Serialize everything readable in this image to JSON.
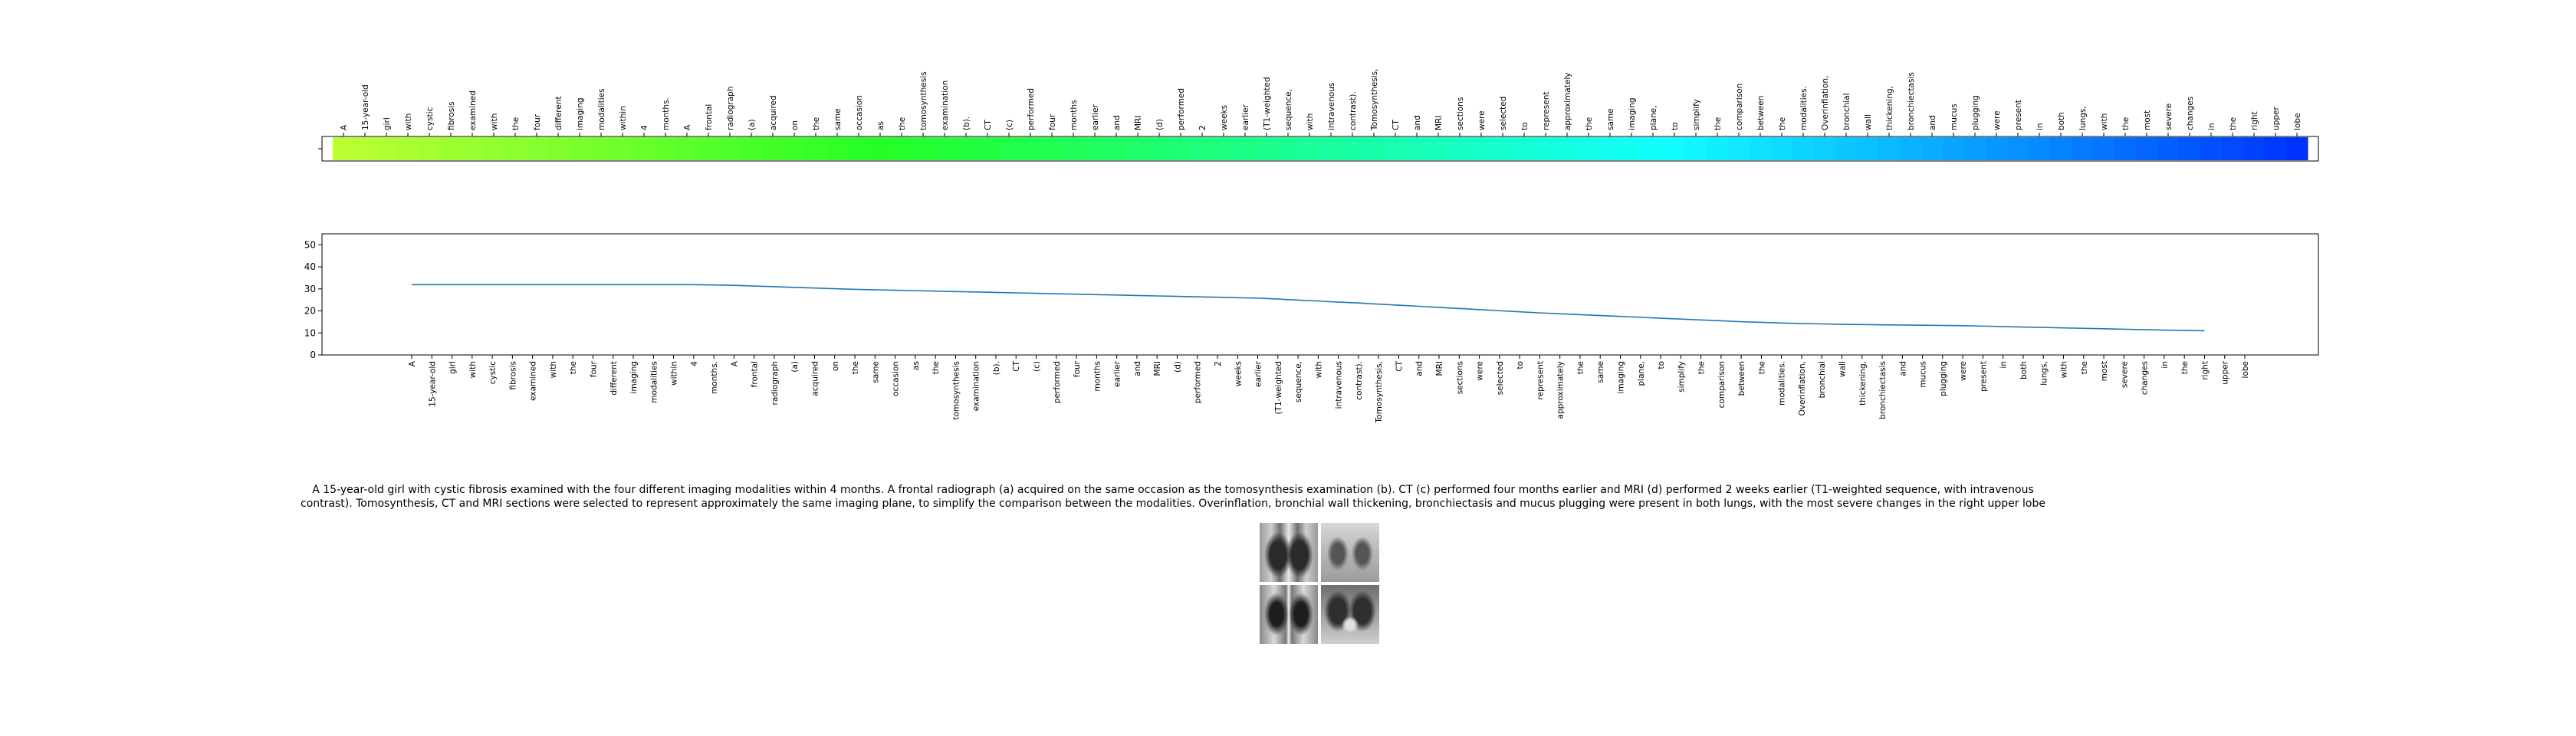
{
  "chart_data": [
    {
      "type": "heatmap",
      "orientation": "horizontal-strip",
      "colormap": "gist_rainbow",
      "x_tick_labels": [
        "A",
        "15-year-old",
        "girl",
        "with",
        "cystic",
        "fibrosis",
        "examined",
        "with",
        "the",
        "four",
        "different",
        "imaging",
        "modalities",
        "within",
        "4",
        "months.",
        "A",
        "frontal",
        "radiograph",
        "(a)",
        "acquired",
        "on",
        "the",
        "same",
        "occasion",
        "as",
        "the",
        "tomosynthesis",
        "examination",
        "(b).",
        "CT",
        "(c)",
        "performed",
        "four",
        "months",
        "earlier",
        "and",
        "MRI",
        "(d)",
        "performed",
        "2",
        "weeks",
        "earlier",
        "(T1-weighted",
        "sequence,",
        "with",
        "intravenous",
        "contrast).",
        "Tomosynthesis,",
        "CT",
        "and",
        "MRI",
        "sections",
        "were",
        "selected",
        "to",
        "represent",
        "approximately",
        "the",
        "same",
        "imaging",
        "plane,",
        "to",
        "simplify",
        "the",
        "comparison",
        "between",
        "the",
        "modalities.",
        "Overinflation,",
        "bronchial",
        "wall",
        "thickening,",
        "bronchiectasis",
        "and",
        "mucus",
        "plugging",
        "were",
        "present",
        "in",
        "both",
        "lungs,",
        "with",
        "the",
        "most",
        "severe",
        "changes",
        "in",
        "the",
        "right",
        "upper",
        "lobe"
      ],
      "tick_label_position": "top",
      "color_start": "#bbff33",
      "color_end": "#0033ff"
    },
    {
      "type": "line",
      "x_tick_labels": [
        "A",
        "15-year-old",
        "girl",
        "with",
        "cystic",
        "fibrosis",
        "examined",
        "with",
        "the",
        "four",
        "different",
        "imaging",
        "modalities",
        "within",
        "4",
        "months.",
        "A",
        "frontal",
        "radiograph",
        "(a)",
        "acquired",
        "on",
        "the",
        "same",
        "occasion",
        "as",
        "the",
        "tomosynthesis",
        "examination",
        "(b).",
        "CT",
        "(c)",
        "performed",
        "four",
        "months",
        "earlier",
        "and",
        "MRI",
        "(d)",
        "performed",
        "2",
        "weeks",
        "earlier",
        "(T1-weighted",
        "sequence,",
        "with",
        "intravenous",
        "contrast).",
        "Tomosynthesis,",
        "CT",
        "and",
        "MRI",
        "sections",
        "were",
        "selected",
        "to",
        "represent",
        "approximately",
        "the",
        "same",
        "imaging",
        "plane,",
        "to",
        "simplify",
        "the",
        "comparison",
        "between",
        "the",
        "modalities.",
        "Overinflation,",
        "bronchial",
        "wall",
        "thickening,",
        "bronchiectasis",
        "and",
        "mucus",
        "plugging",
        "were",
        "present",
        "in",
        "both",
        "lungs,",
        "with",
        "the",
        "most",
        "severe",
        "changes",
        "in",
        "the",
        "right",
        "upper",
        "lobe"
      ],
      "y_ticks": [
        0,
        10,
        20,
        30,
        40,
        50
      ],
      "ylim": [
        0,
        55
      ],
      "series": [
        {
          "color": "#1f77b4",
          "values": [
            31.9,
            31.9,
            31.9,
            31.9,
            31.9,
            31.9,
            31.9,
            31.9,
            31.9,
            31.9,
            31.9,
            31.9,
            31.9,
            31.9,
            31.9,
            31.8,
            31.6,
            31.3,
            31.0,
            30.7,
            30.4,
            30.1,
            29.8,
            29.6,
            29.4,
            29.2,
            29.0,
            28.8,
            28.6,
            28.4,
            28.2,
            28.0,
            27.8,
            27.6,
            27.4,
            27.2,
            27.0,
            26.8,
            26.6,
            26.4,
            26.2,
            26.0,
            25.8,
            25.4,
            24.9,
            24.5,
            24.0,
            23.6,
            23.1,
            22.6,
            22.1,
            21.6,
            21.1,
            20.6,
            20.1,
            19.6,
            19.1,
            18.7,
            18.3,
            17.9,
            17.5,
            17.1,
            16.7,
            16.3,
            15.9,
            15.5,
            15.1,
            14.8,
            14.5,
            14.3,
            14.1,
            13.9,
            13.8,
            13.7,
            13.6,
            13.5,
            13.4,
            13.3,
            13.1,
            12.9,
            12.7,
            12.5,
            12.3,
            12.1,
            11.9,
            11.7,
            11.5,
            11.3,
            11.1,
            11.0
          ]
        }
      ]
    }
  ],
  "caption": "A 15-year-old girl with cystic fibrosis examined with the four different imaging modalities within 4 months. A frontal radiograph (a) acquired on the same occasion as the tomosynthesis examination (b). CT (c) performed four months earlier and MRI (d) performed 2 weeks earlier (T1-weighted sequence, with intravenous contrast). Tomosynthesis, CT and MRI sections were selected to represent approximately the same imaging plane, to simplify the comparison between the modalities. Overinflation, bronchial wall thickening, bronchiectasis and mucus plugging were present in both lungs, with the most severe changes in the right upper lobe",
  "thumbnail_grid": {
    "panels": [
      "radiograph",
      "tomosynthesis",
      "ct",
      "mri"
    ]
  }
}
